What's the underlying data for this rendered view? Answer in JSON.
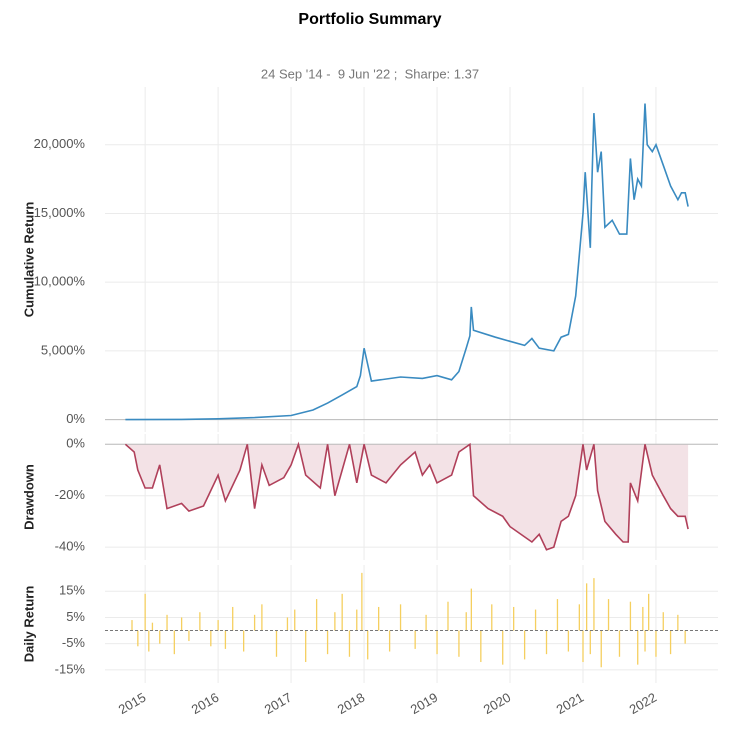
{
  "chart_data": [
    {
      "type": "line",
      "title": "Portfolio Summary",
      "subtitle": "24 Sep '14 -  9 Jun '22 ;  Sharpe: 1.37",
      "ylabel": "Cumulative Return",
      "color": "#3a8bc1",
      "grid": true,
      "x": [
        2014.73,
        2015.5,
        2016.0,
        2016.5,
        2017.0,
        2017.3,
        2017.5,
        2017.7,
        2017.9,
        2017.95,
        2018.0,
        2018.1,
        2018.5,
        2018.8,
        2019.0,
        2019.2,
        2019.3,
        2019.4,
        2019.45,
        2019.47,
        2019.5,
        2019.8,
        2020.0,
        2020.2,
        2020.3,
        2020.4,
        2020.6,
        2020.7,
        2020.8,
        2020.9,
        2021.0,
        2021.03,
        2021.1,
        2021.12,
        2021.15,
        2021.2,
        2021.25,
        2021.3,
        2021.4,
        2021.5,
        2021.6,
        2021.65,
        2021.7,
        2021.75,
        2021.8,
        2021.85,
        2021.88,
        2021.95,
        2022.0,
        2022.1,
        2022.2,
        2022.3,
        2022.35,
        2022.4,
        2022.44
      ],
      "values": [
        0,
        20,
        60,
        150,
        300,
        700,
        1200,
        1800,
        2400,
        3200,
        5200,
        2800,
        3100,
        3000,
        3200,
        2900,
        3500,
        5200,
        6100,
        8200,
        6500,
        6000,
        5700,
        5400,
        5900,
        5200,
        5000,
        6000,
        6200,
        9000,
        15000,
        18000,
        12500,
        17000,
        22300,
        18000,
        19500,
        14000,
        14500,
        13500,
        13500,
        19000,
        16000,
        17500,
        17000,
        23000,
        20000,
        19500,
        20000,
        18500,
        17000,
        16000,
        16500,
        16500,
        15500
      ],
      "ylim": [
        -900,
        24200
      ],
      "yticks": [
        {
          "value": 0,
          "label": "0%"
        },
        {
          "value": 5000,
          "label": "5,000%"
        },
        {
          "value": 10000,
          "label": "10,000%"
        },
        {
          "value": 15000,
          "label": "15,000%"
        },
        {
          "value": 20000,
          "label": "20,000%"
        }
      ]
    },
    {
      "type": "area",
      "ylabel": "Drawdown",
      "color": "#b0405a",
      "fill": "#f3e2e6",
      "grid": true,
      "x": [
        2014.73,
        2014.85,
        2014.9,
        2015.0,
        2015.1,
        2015.2,
        2015.3,
        2015.5,
        2015.6,
        2015.8,
        2016.0,
        2016.1,
        2016.3,
        2016.4,
        2016.5,
        2016.6,
        2016.7,
        2016.9,
        2017.0,
        2017.1,
        2017.2,
        2017.4,
        2017.5,
        2017.6,
        2017.7,
        2017.8,
        2017.9,
        2018.0,
        2018.1,
        2018.3,
        2018.5,
        2018.7,
        2018.8,
        2018.9,
        2019.0,
        2019.2,
        2019.3,
        2019.45,
        2019.5,
        2019.7,
        2019.9,
        2020.0,
        2020.2,
        2020.3,
        2020.4,
        2020.5,
        2020.6,
        2020.7,
        2020.8,
        2020.9,
        2021.0,
        2021.05,
        2021.15,
        2021.2,
        2021.3,
        2021.45,
        2021.55,
        2021.62,
        2021.65,
        2021.75,
        2021.85,
        2021.95,
        2022.1,
        2022.2,
        2022.3,
        2022.4,
        2022.44
      ],
      "values": [
        0,
        -3,
        -10,
        -17,
        -17,
        -8,
        -25,
        -23,
        -26,
        -24,
        -12,
        -22,
        -10,
        0,
        -25,
        -8,
        -16,
        -13,
        -8,
        0,
        -12,
        -17,
        0,
        -20,
        -10,
        0,
        -15,
        0,
        -12,
        -15,
        -8,
        -3,
        -12,
        -8,
        -15,
        -12,
        -3,
        0,
        -20,
        -25,
        -28,
        -32,
        -36,
        -38,
        -35,
        -41,
        -40,
        -30,
        -28,
        -20,
        0,
        -10,
        0,
        -18,
        -30,
        -35,
        -38,
        -38,
        -15,
        -22,
        0,
        -12,
        -20,
        -25,
        -28,
        -28,
        -33
      ],
      "ylim": [
        -45,
        4
      ],
      "yticks": [
        {
          "value": 0,
          "label": "0%"
        },
        {
          "value": -20,
          "label": "-20%"
        },
        {
          "value": -40,
          "label": "-40%"
        }
      ]
    },
    {
      "type": "bar",
      "ylabel": "Daily Return",
      "color": "#f5cf5f",
      "grid": true,
      "x": [
        2014.82,
        2014.9,
        2015.0,
        2015.05,
        2015.1,
        2015.2,
        2015.3,
        2015.4,
        2015.5,
        2015.6,
        2015.75,
        2015.9,
        2016.0,
        2016.1,
        2016.2,
        2016.35,
        2016.5,
        2016.6,
        2016.8,
        2016.95,
        2017.05,
        2017.2,
        2017.35,
        2017.5,
        2017.6,
        2017.7,
        2017.8,
        2017.9,
        2017.97,
        2018.05,
        2018.2,
        2018.35,
        2018.5,
        2018.7,
        2018.85,
        2019.0,
        2019.15,
        2019.3,
        2019.4,
        2019.47,
        2019.6,
        2019.75,
        2019.9,
        2020.05,
        2020.2,
        2020.35,
        2020.5,
        2020.65,
        2020.8,
        2020.95,
        2021.0,
        2021.05,
        2021.1,
        2021.15,
        2021.25,
        2021.35,
        2021.5,
        2021.65,
        2021.75,
        2021.82,
        2021.85,
        2021.9,
        2022.0,
        2022.1,
        2022.2,
        2022.3,
        2022.4
      ],
      "values": [
        4,
        -6,
        14,
        -8,
        3,
        -5,
        6,
        -9,
        5,
        -4,
        7,
        -6,
        4,
        -7,
        9,
        -8,
        6,
        10,
        -10,
        5,
        8,
        -12,
        12,
        -9,
        7,
        14,
        -10,
        8,
        22,
        -11,
        9,
        -8,
        10,
        -7,
        6,
        -9,
        11,
        -10,
        7,
        16,
        -12,
        10,
        -13,
        9,
        -11,
        8,
        -9,
        12,
        -8,
        10,
        -12,
        18,
        -9,
        20,
        -14,
        12,
        -10,
        11,
        -13,
        9,
        -8,
        14,
        -10,
        7,
        -9,
        6,
        -5
      ],
      "ylim": [
        -20,
        25
      ],
      "yticks": [
        {
          "value": 15,
          "label": "15%"
        },
        {
          "value": 5,
          "label": "5%"
        },
        {
          "value": -5,
          "label": "-5%"
        },
        {
          "value": -15,
          "label": "-15%"
        }
      ],
      "xlim": [
        2014.45,
        2022.85
      ],
      "xticks": [
        2015,
        2016,
        2017,
        2018,
        2019,
        2020,
        2021,
        2022
      ]
    }
  ]
}
